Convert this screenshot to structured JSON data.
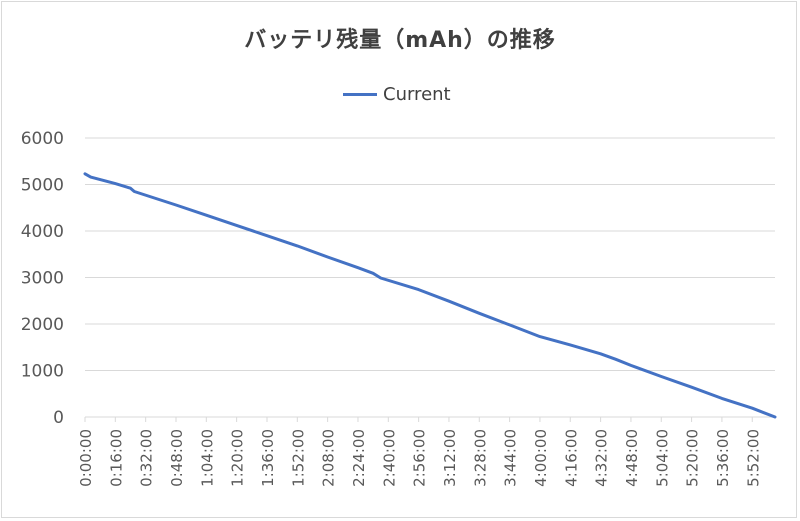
{
  "chart_data": {
    "type": "line",
    "title": "バッテリ残量（mAh）の推移",
    "legend": "top",
    "grid": true,
    "ylim": [
      0,
      6000
    ],
    "yticks": [
      "0",
      "1000",
      "2000",
      "3000",
      "4000",
      "5000",
      "6000"
    ],
    "xticks": [
      "0:00:00",
      "0:16:00",
      "0:32:00",
      "0:48:00",
      "1:04:00",
      "1:20:00",
      "1:36:00",
      "1:52:00",
      "2:08:00",
      "2:24:00",
      "2:40:00",
      "2:56:00",
      "3:12:00",
      "3:28:00",
      "3:44:00",
      "4:00:00",
      "4:16:00",
      "4:32:00",
      "4:48:00",
      "5:04:00",
      "5:20:00",
      "5:36:00",
      "5:52:00"
    ],
    "series": [
      {
        "name": "Current",
        "color": "#4472c4",
        "points": [
          {
            "t": "0:00:00",
            "y": 5230
          },
          {
            "t": "0:03:00",
            "y": 5160
          },
          {
            "t": "0:16:00",
            "y": 5020
          },
          {
            "t": "0:24:00",
            "y": 4920
          },
          {
            "t": "0:26:00",
            "y": 4850
          },
          {
            "t": "0:48:00",
            "y": 4560
          },
          {
            "t": "1:04:00",
            "y": 4340
          },
          {
            "t": "1:20:00",
            "y": 4120
          },
          {
            "t": "1:36:00",
            "y": 3900
          },
          {
            "t": "1:52:00",
            "y": 3680
          },
          {
            "t": "2:08:00",
            "y": 3440
          },
          {
            "t": "2:24:00",
            "y": 3210
          },
          {
            "t": "2:32:00",
            "y": 3090
          },
          {
            "t": "2:36:00",
            "y": 2990
          },
          {
            "t": "2:56:00",
            "y": 2740
          },
          {
            "t": "3:12:00",
            "y": 2490
          },
          {
            "t": "3:28:00",
            "y": 2230
          },
          {
            "t": "3:44:00",
            "y": 1980
          },
          {
            "t": "4:00:00",
            "y": 1730
          },
          {
            "t": "4:16:00",
            "y": 1550
          },
          {
            "t": "4:32:00",
            "y": 1360
          },
          {
            "t": "4:40:00",
            "y": 1240
          },
          {
            "t": "4:48:00",
            "y": 1110
          },
          {
            "t": "5:04:00",
            "y": 870
          },
          {
            "t": "5:20:00",
            "y": 640
          },
          {
            "t": "5:36:00",
            "y": 400
          },
          {
            "t": "5:52:00",
            "y": 190
          },
          {
            "t": "6:04:00",
            "y": 0
          }
        ]
      }
    ]
  }
}
